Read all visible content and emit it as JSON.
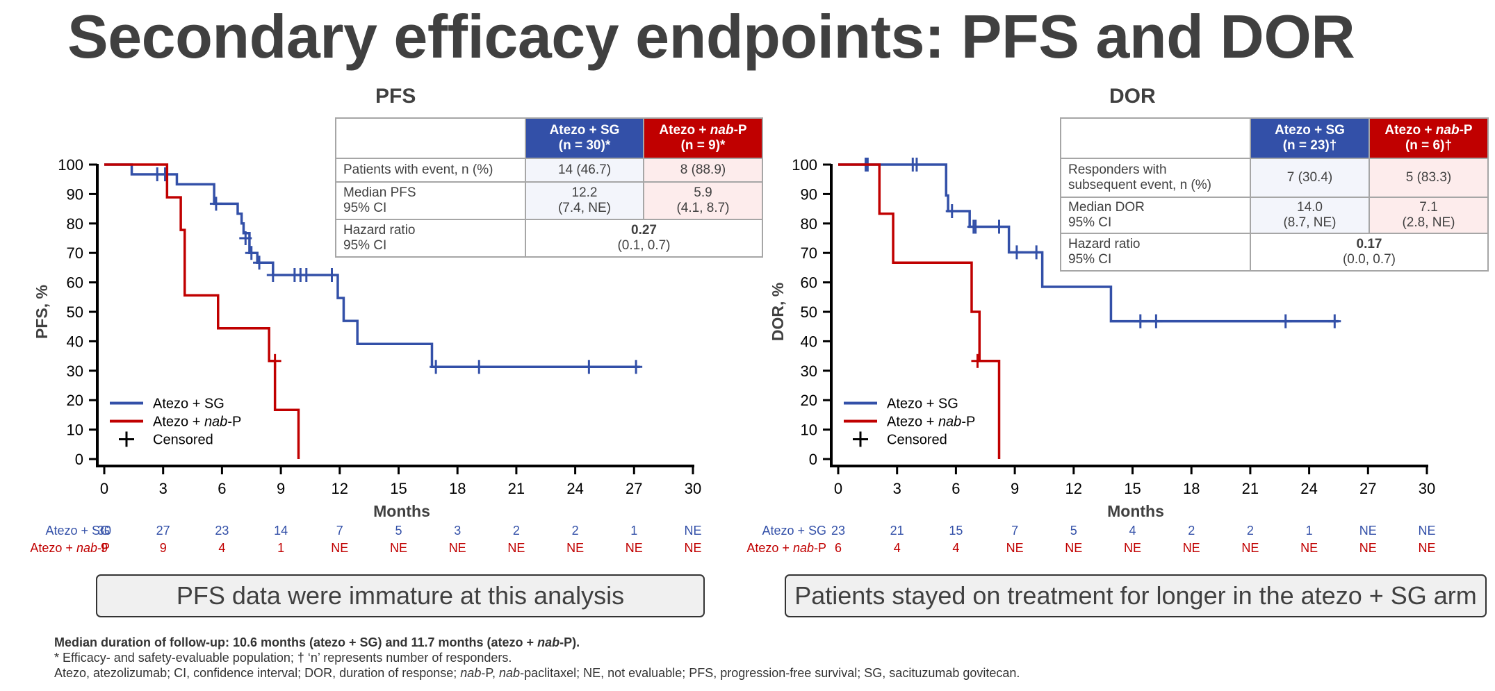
{
  "title": "Secondary efficacy endpoints: PFS and DOR",
  "colors": {
    "sg": "#3350a8",
    "nab": "#c00000",
    "axis": "#000000",
    "text": "#404040"
  },
  "panels": [
    {
      "title": "PFS",
      "table": {
        "arm_sg": "Atezo + SG",
        "arm_sg_n": "(n = 30)*",
        "arm_nab_a": "Atezo + ",
        "arm_nab_b": "nab",
        "arm_nab_c": "-P",
        "arm_nab_n": "(n = 9)*",
        "row1_label": "Patients with event, n (%)",
        "row1_sg": "14 (46.7)",
        "row1_nab": "8 (88.9)",
        "row2_label_1": "Median PFS",
        "row2_label_2": "95% CI",
        "row2_sg_1": "12.2",
        "row2_sg_2": "(7.4, NE)",
        "row2_nab_1": "5.9",
        "row2_nab_2": "(4.1, 8.7)",
        "row3_label_1": "Hazard ratio",
        "row3_label_2": "95% CI",
        "row3_val_1": "0.27",
        "row3_val_2": "(0.1, 0.7)"
      },
      "callout": "PFS data were immature at this analysis"
    },
    {
      "title": "DOR",
      "table": {
        "arm_sg": "Atezo + SG",
        "arm_sg_n": "(n = 23)†",
        "arm_nab_a": "Atezo + ",
        "arm_nab_b": "nab",
        "arm_nab_c": "-P",
        "arm_nab_n": "(n = 6)†",
        "row1_label_1": "Responders with",
        "row1_label_2": "subsequent event, n (%)",
        "row1_sg": "7 (30.4)",
        "row1_nab": "5 (83.3)",
        "row2_label_1": "Median DOR",
        "row2_label_2": "95% CI",
        "row2_sg_1": "14.0",
        "row2_sg_2": "(8.7, NE)",
        "row2_nab_1": "7.1",
        "row2_nab_2": "(2.8, NE)",
        "row3_label_1": "Hazard ratio",
        "row3_label_2": "95% CI",
        "row3_val_1": "0.17",
        "row3_val_2": "(0.0, 0.7)"
      },
      "callout": "Patients stayed on treatment for longer in the atezo + SG arm"
    }
  ],
  "footnotes": {
    "line1_a": "Median duration of follow-up: 10.6 months (atezo + SG) and 11.7 months (atezo + ",
    "line1_b": "nab",
    "line1_c": "-P).",
    "line2": "* Efficacy- and safety-evaluable population; † ‘n’ represents number of responders.",
    "line3_a": "Atezo, atezolizumab; CI, confidence interval; DOR, duration of response; ",
    "line3_b": "nab",
    "line3_c": "-P, ",
    "line3_d": "nab",
    "line3_e": "-paclitaxel; NE, not evaluable; PFS, progression-free survival; SG, sacituzumab govitecan."
  },
  "chart_data": [
    {
      "type": "line",
      "title": "PFS",
      "xlabel": "Months",
      "ylabel": "PFS, %",
      "xlim": [
        0,
        30
      ],
      "ylim": [
        0,
        100
      ],
      "xticks": [
        0,
        3,
        6,
        9,
        12,
        15,
        18,
        21,
        24,
        27,
        30
      ],
      "yticks": [
        0,
        10,
        20,
        30,
        40,
        50,
        60,
        70,
        80,
        90,
        100
      ],
      "legend_position": "bottom-left",
      "legend": [
        "Atezo + SG",
        "Atezo + nab-P",
        "Censored"
      ],
      "series": [
        {
          "name": "Atezo + SG",
          "color": "#3350a8",
          "steps": [
            [
              0,
              100
            ],
            [
              1.4,
              96.7
            ],
            [
              3.7,
              93.3
            ],
            [
              5.6,
              86.7
            ],
            [
              6.8,
              83.3
            ],
            [
              7.0,
              80.0
            ],
            [
              7.1,
              76.7
            ],
            [
              7.4,
              70.0
            ],
            [
              7.8,
              66.7
            ],
            [
              8.6,
              62.5
            ],
            [
              11.9,
              54.7
            ],
            [
              12.2,
              46.9
            ],
            [
              12.9,
              39.1
            ],
            [
              16.7,
              31.3
            ],
            [
              27.3,
              31.3
            ]
          ],
          "censored": [
            [
              2.7,
              96.7
            ],
            [
              3.1,
              96.7
            ],
            [
              5.7,
              86.7
            ],
            [
              7.2,
              75
            ],
            [
              7.5,
              70
            ],
            [
              7.9,
              66.7
            ],
            [
              8.6,
              62.5
            ],
            [
              9.7,
              62.5
            ],
            [
              10.0,
              62.5
            ],
            [
              10.3,
              62.5
            ],
            [
              11.6,
              62.5
            ],
            [
              16.9,
              31.3
            ],
            [
              19.1,
              31.3
            ],
            [
              24.7,
              31.3
            ],
            [
              27.1,
              31.3
            ]
          ]
        },
        {
          "name": "Atezo + nab-P",
          "color": "#c00000",
          "steps": [
            [
              0,
              100
            ],
            [
              3.2,
              88.9
            ],
            [
              3.9,
              77.8
            ],
            [
              4.1,
              55.6
            ],
            [
              5.8,
              44.4
            ],
            [
              8.4,
              33.3
            ],
            [
              8.7,
              16.7
            ],
            [
              9.9,
              0
            ]
          ],
          "censored": [
            [
              8.7,
              33.3
            ]
          ]
        }
      ],
      "at_risk": {
        "times": [
          0,
          3,
          6,
          9,
          12,
          15,
          18,
          21,
          24,
          27,
          30
        ],
        "rows": [
          {
            "label": "Atezo + SG",
            "values": [
              "30",
              "27",
              "23",
              "14",
              "7",
              "5",
              "3",
              "2",
              "2",
              "1",
              "NE"
            ]
          },
          {
            "label_a": "Atezo + ",
            "label_b": "nab",
            "label_c": "-P",
            "values": [
              "9",
              "9",
              "4",
              "1",
              "NE",
              "NE",
              "NE",
              "NE",
              "NE",
              "NE",
              "NE"
            ]
          }
        ]
      }
    },
    {
      "type": "line",
      "title": "DOR",
      "xlabel": "Months",
      "ylabel": "DOR, %",
      "xlim": [
        0,
        30
      ],
      "ylim": [
        0,
        100
      ],
      "xticks": [
        0,
        3,
        6,
        9,
        12,
        15,
        18,
        21,
        24,
        27,
        30
      ],
      "yticks": [
        0,
        10,
        20,
        30,
        40,
        50,
        60,
        70,
        80,
        90,
        100
      ],
      "legend_position": "bottom-left",
      "legend": [
        "Atezo + SG",
        "Atezo + nab-P",
        "Censored"
      ],
      "series": [
        {
          "name": "Atezo + SG",
          "color": "#3350a8",
          "steps": [
            [
              0,
              100
            ],
            [
              5.5,
              89.5
            ],
            [
              5.6,
              84.2
            ],
            [
              6.7,
              78.9
            ],
            [
              8.7,
              70.2
            ],
            [
              10.4,
              58.5
            ],
            [
              13.9,
              46.8
            ],
            [
              25.5,
              46.8
            ]
          ],
          "censored": [
            [
              1.4,
              100
            ],
            [
              1.5,
              100
            ],
            [
              3.8,
              100
            ],
            [
              4.0,
              100
            ],
            [
              5.8,
              84.2
            ],
            [
              6.9,
              78.9
            ],
            [
              7.0,
              78.9
            ],
            [
              8.2,
              78.9
            ],
            [
              9.1,
              70.2
            ],
            [
              10.1,
              70.2
            ],
            [
              15.4,
              46.8
            ],
            [
              16.2,
              46.8
            ],
            [
              22.8,
              46.8
            ],
            [
              25.3,
              46.8
            ]
          ]
        },
        {
          "name": "Atezo + nab-P",
          "color": "#c00000",
          "steps": [
            [
              0,
              100
            ],
            [
              2.1,
              83.3
            ],
            [
              2.8,
              66.7
            ],
            [
              6.8,
              50.0
            ],
            [
              7.2,
              33.3
            ],
            [
              8.2,
              0
            ]
          ],
          "censored": [
            [
              7.1,
              33.3
            ]
          ]
        }
      ],
      "at_risk": {
        "times": [
          0,
          3,
          6,
          9,
          12,
          15,
          18,
          21,
          24,
          27,
          30
        ],
        "rows": [
          {
            "label": "Atezo + SG",
            "values": [
              "23",
              "21",
              "15",
              "7",
              "5",
              "4",
              "2",
              "2",
              "1",
              "NE",
              "NE"
            ]
          },
          {
            "label_a": "Atezo + ",
            "label_b": "nab",
            "label_c": "-P",
            "values": [
              "6",
              "4",
              "4",
              "NE",
              "NE",
              "NE",
              "NE",
              "NE",
              "NE",
              "NE",
              "NE"
            ]
          }
        ]
      }
    }
  ]
}
